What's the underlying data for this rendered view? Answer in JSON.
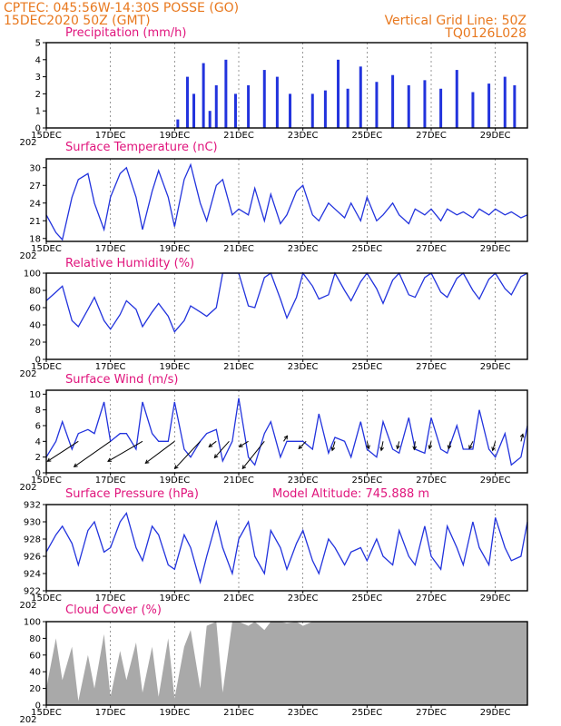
{
  "header": {
    "line1_left": "CPTEC:  045:56W-14:30S   POSSE (GO)",
    "line2_left": "15DEC2020 50Z (GMT)",
    "line2_right": "Vertical Grid Line: 50Z",
    "line3_right": "TQ0126L028"
  },
  "xaxis": {
    "labels": [
      "15DEC",
      "17DEC",
      "19DEC",
      "21DEC",
      "23DEC",
      "25DEC",
      "27DEC",
      "29DEC"
    ],
    "label_days": [
      0,
      2,
      4,
      6,
      8,
      10,
      12,
      14
    ],
    "range_days": [
      0,
      15
    ],
    "year_fragment": "202"
  },
  "colors": {
    "header": "#e8781e",
    "title": "#e0147c",
    "series": "#2233dd",
    "cloud": "#a9a9a9",
    "arrow": "#000000"
  },
  "chart_data": [
    {
      "type": "bar",
      "title": "Precipitation (mm/h)",
      "ylim": [
        0,
        5
      ],
      "yticks": [
        0,
        1,
        2,
        3,
        4,
        5
      ],
      "x_days": [
        4.1,
        4.4,
        4.6,
        4.9,
        5.1,
        5.3,
        5.6,
        5.9,
        6.3,
        6.8,
        7.2,
        7.6,
        8.3,
        8.7,
        9.1,
        9.4,
        9.8,
        10.3,
        10.8,
        11.3,
        11.8,
        12.3,
        12.8,
        13.3,
        13.8,
        14.3,
        14.6
      ],
      "values": [
        0.5,
        3.0,
        2.0,
        3.8,
        1.0,
        2.5,
        4.0,
        2.0,
        2.5,
        3.4,
        3.0,
        2.0,
        2.0,
        2.2,
        4.0,
        2.3,
        3.6,
        2.7,
        3.1,
        2.5,
        2.8,
        2.3,
        3.4,
        2.1,
        2.6,
        3.0,
        2.5
      ]
    },
    {
      "type": "line",
      "title": "Surface Temperature (nC)",
      "ylim": [
        17.5,
        31.5
      ],
      "yticks": [
        18,
        21,
        24,
        27,
        30
      ],
      "x": [
        0,
        0.3,
        0.5,
        0.8,
        1.0,
        1.3,
        1.5,
        1.8,
        2.0,
        2.3,
        2.5,
        2.8,
        3.0,
        3.3,
        3.5,
        3.8,
        4.0,
        4.3,
        4.5,
        4.8,
        5.0,
        5.3,
        5.5,
        5.8,
        6.0,
        6.3,
        6.5,
        6.8,
        7.0,
        7.3,
        7.5,
        7.8,
        8.0,
        8.3,
        8.5,
        8.8,
        9.0,
        9.3,
        9.5,
        9.8,
        10.0,
        10.3,
        10.5,
        10.8,
        11.0,
        11.3,
        11.5,
        11.8,
        12.0,
        12.3,
        12.5,
        12.8,
        13.0,
        13.3,
        13.5,
        13.8,
        14.0,
        14.3,
        14.5,
        14.8,
        15.0
      ],
      "values": [
        22,
        19,
        17.8,
        25,
        28,
        29,
        24,
        19.5,
        25,
        29,
        30,
        25,
        19.5,
        26,
        29.5,
        25,
        20,
        28,
        30.5,
        24,
        21,
        27,
        28,
        22,
        23,
        22,
        26.5,
        21,
        25.5,
        20.5,
        22,
        26,
        27,
        22,
        21,
        24,
        23,
        21.5,
        24,
        21,
        25,
        21,
        22,
        24,
        22,
        20.5,
        23,
        22,
        23,
        21,
        23,
        22,
        22.5,
        21.5,
        23,
        22,
        23,
        22,
        22.5,
        21.5,
        22
      ]
    },
    {
      "type": "line",
      "title": "Relative Humidity (%)",
      "ylim": [
        0,
        100
      ],
      "yticks": [
        0,
        20,
        40,
        60,
        80,
        100
      ],
      "x": [
        0,
        0.3,
        0.5,
        0.8,
        1.0,
        1.3,
        1.5,
        1.8,
        2.0,
        2.3,
        2.5,
        2.8,
        3.0,
        3.3,
        3.5,
        3.8,
        4.0,
        4.3,
        4.5,
        4.8,
        5.0,
        5.3,
        5.5,
        5.8,
        6.0,
        6.3,
        6.5,
        6.8,
        7.0,
        7.3,
        7.5,
        7.8,
        8.0,
        8.3,
        8.5,
        8.8,
        9.0,
        9.3,
        9.5,
        9.8,
        10.0,
        10.3,
        10.5,
        10.8,
        11.0,
        11.3,
        11.5,
        11.8,
        12.0,
        12.3,
        12.5,
        12.8,
        13.0,
        13.3,
        13.5,
        13.8,
        14.0,
        14.3,
        14.5,
        14.8,
        15.0
      ],
      "values": [
        68,
        78,
        85,
        45,
        38,
        58,
        72,
        45,
        35,
        52,
        68,
        58,
        38,
        55,
        65,
        50,
        32,
        45,
        62,
        55,
        50,
        60,
        100,
        100,
        100,
        62,
        60,
        95,
        100,
        70,
        48,
        72,
        100,
        85,
        70,
        75,
        100,
        80,
        68,
        90,
        100,
        82,
        65,
        92,
        100,
        75,
        72,
        95,
        100,
        78,
        72,
        94,
        100,
        80,
        70,
        93,
        100,
        82,
        75,
        96,
        100
      ]
    },
    {
      "type": "line",
      "title": "Surface Wind (m/s)",
      "ylim": [
        0,
        10.5
      ],
      "yticks": [
        0,
        2,
        4,
        6,
        8,
        10
      ],
      "x": [
        0,
        0.3,
        0.5,
        0.8,
        1.0,
        1.3,
        1.5,
        1.8,
        2.0,
        2.3,
        2.5,
        2.8,
        3.0,
        3.3,
        3.5,
        3.8,
        4.0,
        4.3,
        4.5,
        4.8,
        5.0,
        5.3,
        5.5,
        5.8,
        6.0,
        6.3,
        6.5,
        6.8,
        7.0,
        7.3,
        7.5,
        7.8,
        8.0,
        8.3,
        8.5,
        8.8,
        9.0,
        9.3,
        9.5,
        9.8,
        10.0,
        10.3,
        10.5,
        10.8,
        11.0,
        11.3,
        11.5,
        11.8,
        12.0,
        12.3,
        12.5,
        12.8,
        13.0,
        13.3,
        13.5,
        13.8,
        14.0,
        14.3,
        14.5,
        14.8,
        15.0
      ],
      "values": [
        2,
        4,
        6.5,
        3,
        5,
        5.5,
        5,
        9,
        4,
        5,
        5,
        3,
        9,
        5,
        4,
        4,
        9,
        3,
        2,
        4,
        5,
        5.5,
        1.5,
        4,
        9.5,
        2,
        1,
        5,
        6.5,
        2,
        4,
        4,
        4,
        3,
        7.5,
        2.5,
        4.5,
        4,
        2,
        6.5,
        3,
        2,
        6.5,
        3,
        2.5,
        7,
        3,
        2.5,
        7,
        3,
        2.5,
        6,
        3,
        3,
        8,
        3,
        2,
        5,
        1,
        2,
        6
      ],
      "arrows": [
        {
          "day": 1.0,
          "dx": -34,
          "dy": 22
        },
        {
          "day": 2.0,
          "dx": -40,
          "dy": 28
        },
        {
          "day": 3.0,
          "dx": -38,
          "dy": 22
        },
        {
          "day": 4.0,
          "dx": -32,
          "dy": 24
        },
        {
          "day": 4.8,
          "dx": -28,
          "dy": 30
        },
        {
          "day": 5.3,
          "dx": -8,
          "dy": 6
        },
        {
          "day": 5.7,
          "dx": -16,
          "dy": 18
        },
        {
          "day": 6.3,
          "dx": -10,
          "dy": 6
        },
        {
          "day": 6.8,
          "dx": -24,
          "dy": 30
        },
        {
          "day": 7.4,
          "dx": 4,
          "dy": -6
        },
        {
          "day": 8.1,
          "dx": -8,
          "dy": 8
        },
        {
          "day": 9.0,
          "dx": -3,
          "dy": 10
        },
        {
          "day": 10.0,
          "dx": 2,
          "dy": 8
        },
        {
          "day": 10.5,
          "dx": -2,
          "dy": 10
        },
        {
          "day": 11.0,
          "dx": -2,
          "dy": 8
        },
        {
          "day": 11.5,
          "dx": -1,
          "dy": 9
        },
        {
          "day": 12.0,
          "dx": -2,
          "dy": 8
        },
        {
          "day": 12.6,
          "dx": -2,
          "dy": 8
        },
        {
          "day": 13.3,
          "dx": -4,
          "dy": 8
        },
        {
          "day": 14.0,
          "dx": -3,
          "dy": 10
        },
        {
          "day": 14.8,
          "dx": 2,
          "dy": -8
        }
      ]
    },
    {
      "type": "line",
      "title": "Surface Pressure (hPa)",
      "annotation": "Model Altitude: 745.888  m",
      "ylim": [
        922,
        932
      ],
      "yticks": [
        922,
        924,
        926,
        928,
        930,
        932
      ],
      "x": [
        0,
        0.3,
        0.5,
        0.8,
        1.0,
        1.3,
        1.5,
        1.8,
        2.0,
        2.3,
        2.5,
        2.8,
        3.0,
        3.3,
        3.5,
        3.8,
        4.0,
        4.3,
        4.5,
        4.8,
        5.0,
        5.3,
        5.5,
        5.8,
        6.0,
        6.3,
        6.5,
        6.8,
        7.0,
        7.3,
        7.5,
        7.8,
        8.0,
        8.3,
        8.5,
        8.8,
        9.0,
        9.3,
        9.5,
        9.8,
        10.0,
        10.3,
        10.5,
        10.8,
        11.0,
        11.3,
        11.5,
        11.8,
        12.0,
        12.3,
        12.5,
        12.8,
        13.0,
        13.3,
        13.5,
        13.8,
        14.0,
        14.3,
        14.5,
        14.8,
        15.0
      ],
      "values": [
        926.5,
        928.5,
        929.5,
        927.5,
        925,
        929,
        930,
        926.5,
        927,
        930,
        931,
        927,
        925.5,
        929.5,
        928.5,
        925,
        924.5,
        928.5,
        927,
        923,
        926,
        930,
        927,
        924,
        928,
        930,
        926,
        924,
        929,
        927,
        924.5,
        927.5,
        929,
        925.5,
        924,
        928,
        927,
        925,
        926.5,
        927,
        925.5,
        928,
        926,
        925,
        929,
        926,
        925,
        929.5,
        926,
        924.5,
        929.5,
        927,
        925,
        930,
        927,
        925,
        930.5,
        927,
        925.5,
        926,
        930
      ]
    },
    {
      "type": "area",
      "title": "Cloud Cover (%)",
      "ylim": [
        0,
        100
      ],
      "yticks": [
        0,
        20,
        40,
        60,
        80,
        100
      ],
      "x": [
        0,
        0.3,
        0.5,
        0.8,
        1.0,
        1.3,
        1.5,
        1.8,
        2.0,
        2.3,
        2.5,
        2.8,
        3.0,
        3.3,
        3.5,
        3.8,
        4.0,
        4.3,
        4.5,
        4.8,
        5.0,
        5.3,
        5.5,
        5.8,
        6.0,
        6.3,
        6.5,
        6.8,
        7.0,
        7.3,
        7.5,
        7.8,
        8.0,
        8.3,
        8.5,
        8.8,
        9.0,
        9.3,
        9.5,
        9.8,
        10.0,
        10.3,
        10.5,
        10.8,
        11.0,
        11.3,
        11.5,
        11.8,
        12.0,
        12.3,
        12.5,
        12.8,
        13.0,
        13.3,
        13.5,
        13.8,
        14.0,
        14.3,
        14.5,
        14.8,
        15.0
      ],
      "values": [
        20,
        80,
        30,
        70,
        5,
        60,
        20,
        85,
        10,
        65,
        30,
        75,
        15,
        70,
        10,
        80,
        8,
        70,
        90,
        20,
        95,
        100,
        15,
        100,
        100,
        95,
        100,
        90,
        100,
        100,
        98,
        100,
        95,
        100,
        100,
        100,
        100,
        100,
        100,
        100,
        100,
        100,
        100,
        100,
        100,
        100,
        100,
        100,
        100,
        100,
        100,
        100,
        100,
        100,
        100,
        100,
        100,
        100,
        100,
        100,
        100
      ]
    }
  ]
}
